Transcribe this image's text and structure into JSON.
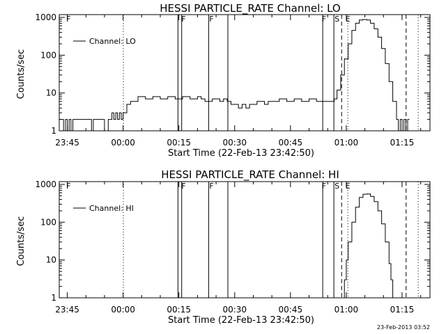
{
  "chart_data": [
    {
      "type": "line",
      "title": "HESSI PARTICLE_RATE Channel: LO",
      "xlabel": "Start Time (22-Feb-13 23:42:50)",
      "ylabel": "Counts/sec",
      "y_scale": "log",
      "ylim": [
        1,
        1000
      ],
      "xlim": [
        "23:42:50",
        "01:22:30"
      ],
      "y_tick_labels": [
        "1",
        "10",
        "100",
        "1000"
      ],
      "x_tick_labels": [
        "23:45",
        "00:00",
        "00:15",
        "00:30",
        "00:45",
        "01:00",
        "01:15"
      ],
      "legend": {
        "label": "Channel: LO",
        "position": "top-left"
      },
      "flag_labels": [
        {
          "text": "F",
          "time": "23:45:20"
        },
        {
          "text": "F",
          "time": "00:16:15"
        },
        {
          "text": "F",
          "time": "00:23:45"
        },
        {
          "text": "F",
          "time": "00:54:00"
        },
        {
          "text": "S",
          "time": "00:57:30"
        },
        {
          "text": "E",
          "time": "01:00:25"
        }
      ],
      "solid_vlines": [
        "00:14:45",
        "00:15:45",
        "00:23:00",
        "00:28:10",
        "00:53:40",
        "00:56:40"
      ],
      "dotted_vlines": [
        "00:00:05",
        "01:00:25",
        "01:19:20"
      ],
      "dashed_vlines": [
        "00:58:45",
        "01:16:05"
      ],
      "series": [
        {
          "name": "Channel: LO",
          "points": [
            [
              "23:42:50",
              2
            ],
            [
              "23:43:30",
              2
            ],
            [
              "23:44:00",
              1
            ],
            [
              "23:44:30",
              2
            ],
            [
              "23:45:00",
              1
            ],
            [
              "23:45:30",
              2
            ],
            [
              "23:46:00",
              1
            ],
            [
              "23:46:30",
              2
            ],
            [
              "23:47:00",
              2
            ],
            [
              "23:49:00",
              2
            ],
            [
              "23:51:00",
              2
            ],
            [
              "23:51:30",
              1
            ],
            [
              "23:52:00",
              2
            ],
            [
              "23:53:00",
              2
            ],
            [
              "23:54:00",
              2
            ],
            [
              "23:55:00",
              1
            ],
            [
              "23:56:00",
              2
            ],
            [
              "23:57:00",
              3
            ],
            [
              "23:57:30",
              2
            ],
            [
              "23:58:00",
              3
            ],
            [
              "23:58:30",
              2
            ],
            [
              "23:59:00",
              3
            ],
            [
              "23:59:30",
              2
            ],
            [
              "00:00:00",
              3
            ],
            [
              "00:01:00",
              5
            ],
            [
              "00:02:00",
              6
            ],
            [
              "00:03:00",
              6
            ],
            [
              "00:04:00",
              8
            ],
            [
              "00:06:00",
              7
            ],
            [
              "00:08:00",
              8
            ],
            [
              "00:10:00",
              7
            ],
            [
              "00:12:00",
              8
            ],
            [
              "00:14:00",
              7
            ],
            [
              "00:16:00",
              8
            ],
            [
              "00:18:00",
              7
            ],
            [
              "00:20:00",
              8
            ],
            [
              "00:21:00",
              7
            ],
            [
              "00:22:00",
              6
            ],
            [
              "00:24:00",
              7
            ],
            [
              "00:26:00",
              6
            ],
            [
              "00:27:00",
              7
            ],
            [
              "00:28:00",
              6
            ],
            [
              "00:29:00",
              5
            ],
            [
              "00:30:00",
              5
            ],
            [
              "00:31:00",
              4
            ],
            [
              "00:32:00",
              5
            ],
            [
              "00:33:00",
              4
            ],
            [
              "00:34:00",
              5
            ],
            [
              "00:35:00",
              5
            ],
            [
              "00:36:00",
              6
            ],
            [
              "00:38:00",
              5
            ],
            [
              "00:39:00",
              6
            ],
            [
              "00:40:00",
              6
            ],
            [
              "00:42:00",
              7
            ],
            [
              "00:44:00",
              6
            ],
            [
              "00:46:00",
              7
            ],
            [
              "00:48:00",
              6
            ],
            [
              "00:50:00",
              7
            ],
            [
              "00:52:00",
              6
            ],
            [
              "00:53:00",
              6
            ],
            [
              "00:56:00",
              6
            ],
            [
              "00:56:45",
              7
            ],
            [
              "00:57:30",
              12
            ],
            [
              "00:58:30",
              30
            ],
            [
              "00:59:30",
              80
            ],
            [
              "01:00:30",
              200
            ],
            [
              "01:01:30",
              450
            ],
            [
              "01:02:30",
              700
            ],
            [
              "01:03:30",
              850
            ],
            [
              "01:04:30",
              880
            ],
            [
              "01:05:30",
              850
            ],
            [
              "01:06:30",
              700
            ],
            [
              "01:07:30",
              500
            ],
            [
              "01:08:30",
              300
            ],
            [
              "01:09:30",
              150
            ],
            [
              "01:10:30",
              60
            ],
            [
              "01:11:30",
              20
            ],
            [
              "01:12:30",
              6
            ],
            [
              "01:13:30",
              2
            ],
            [
              "01:14:00",
              1
            ],
            [
              "01:14:30",
              2
            ],
            [
              "01:15:00",
              1
            ],
            [
              "01:15:30",
              2
            ],
            [
              "01:16:00",
              1
            ],
            [
              "01:16:30",
              2
            ],
            [
              "01:17:00",
              2
            ]
          ]
        }
      ]
    },
    {
      "type": "line",
      "title": "HESSI PARTICLE_RATE Channel: HI",
      "xlabel": "Start Time (22-Feb-13 23:42:50)",
      "ylabel": "Counts/sec",
      "y_scale": "log",
      "ylim": [
        1,
        1000
      ],
      "xlim": [
        "23:42:50",
        "01:22:30"
      ],
      "y_tick_labels": [
        "1",
        "10",
        "100",
        "1000"
      ],
      "x_tick_labels": [
        "23:45",
        "00:00",
        "00:15",
        "00:30",
        "00:45",
        "01:00",
        "01:15"
      ],
      "legend": {
        "label": "Channel: HI",
        "position": "top-left"
      },
      "flag_labels": [
        {
          "text": "F",
          "time": "23:45:20"
        },
        {
          "text": "F",
          "time": "00:16:15"
        },
        {
          "text": "F",
          "time": "00:23:45"
        },
        {
          "text": "F",
          "time": "00:54:00"
        },
        {
          "text": "S",
          "time": "00:57:30"
        },
        {
          "text": "E",
          "time": "01:00:25"
        }
      ],
      "solid_vlines": [
        "00:14:45",
        "00:15:45",
        "00:23:00",
        "00:28:10",
        "00:53:40",
        "00:56:40"
      ],
      "dotted_vlines": [
        "00:00:05",
        "01:00:25",
        "01:19:20"
      ],
      "dashed_vlines": [
        "00:58:45",
        "01:16:05"
      ],
      "series": [
        {
          "name": "Channel: HI",
          "points": [
            [
              "00:59:00",
              1
            ],
            [
              "00:59:30",
              3
            ],
            [
              "01:00:00",
              10
            ],
            [
              "01:00:30",
              30
            ],
            [
              "01:01:30",
              100
            ],
            [
              "01:02:30",
              250
            ],
            [
              "01:03:30",
              450
            ],
            [
              "01:04:30",
              550
            ],
            [
              "01:05:30",
              560
            ],
            [
              "01:06:30",
              480
            ],
            [
              "01:07:30",
              350
            ],
            [
              "01:08:30",
              200
            ],
            [
              "01:09:30",
              90
            ],
            [
              "01:10:30",
              30
            ],
            [
              "01:11:30",
              8
            ],
            [
              "01:12:00",
              3
            ],
            [
              "01:12:30",
              1
            ]
          ]
        }
      ]
    }
  ],
  "footer_stamp": "23-Feb-2013 03:52"
}
